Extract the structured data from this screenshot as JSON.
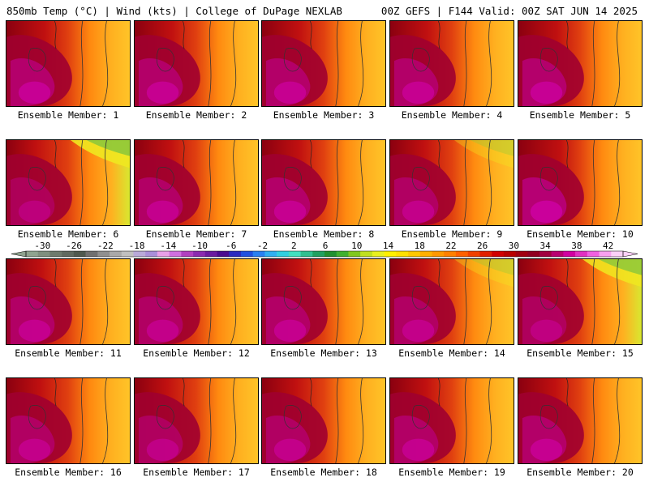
{
  "header": {
    "left": "850mb Temp (°C) | Wind (kts) | College of DuPage NEXLAB",
    "right": "00Z GEFS | F144 Valid: 00Z SAT JUN 14 2025"
  },
  "members": [
    {
      "label": "Ensemble Member: 1",
      "coolness": 0.05,
      "hotness": 0.85
    },
    {
      "label": "Ensemble Member: 2",
      "coolness": 0.15,
      "hotness": 0.8
    },
    {
      "label": "Ensemble Member: 3",
      "coolness": 0.1,
      "hotness": 0.8
    },
    {
      "label": "Ensemble Member: 4",
      "coolness": 0.2,
      "hotness": 0.8
    },
    {
      "label": "Ensemble Member: 5",
      "coolness": 0.1,
      "hotness": 0.85
    },
    {
      "label": "Ensemble Member: 6",
      "coolness": 0.9,
      "hotness": 0.55
    },
    {
      "label": "Ensemble Member: 7",
      "coolness": 0.1,
      "hotness": 0.75
    },
    {
      "label": "Ensemble Member: 8",
      "coolness": 0.1,
      "hotness": 0.8
    },
    {
      "label": "Ensemble Member: 9",
      "coolness": 0.35,
      "hotness": 0.7
    },
    {
      "label": "Ensemble Member: 10",
      "coolness": 0.05,
      "hotness": 0.95
    },
    {
      "label": "Ensemble Member: 11",
      "coolness": 0.15,
      "hotness": 0.75
    },
    {
      "label": "Ensemble Member: 12",
      "coolness": 0.1,
      "hotness": 0.7
    },
    {
      "label": "Ensemble Member: 13",
      "coolness": 0.15,
      "hotness": 0.75
    },
    {
      "label": "Ensemble Member: 14",
      "coolness": 0.35,
      "hotness": 0.7
    },
    {
      "label": "Ensemble Member: 15",
      "coolness": 0.85,
      "hotness": 0.6
    },
    {
      "label": "Ensemble Member: 16",
      "coolness": 0.1,
      "hotness": 0.7
    },
    {
      "label": "Ensemble Member: 17",
      "coolness": 0.2,
      "hotness": 0.65
    },
    {
      "label": "Ensemble Member: 18",
      "coolness": 0.15,
      "hotness": 0.7
    },
    {
      "label": "Ensemble Member: 19",
      "coolness": 0.15,
      "hotness": 0.75
    },
    {
      "label": "Ensemble Member: 20",
      "coolness": 0.15,
      "hotness": 0.8
    }
  ],
  "colorbar": {
    "ticks": [
      "-30",
      "-26",
      "-22",
      "-18",
      "-14",
      "-10",
      "-6",
      "-2",
      "2",
      "6",
      "10",
      "14",
      "18",
      "22",
      "26",
      "30",
      "34",
      "38",
      "42"
    ],
    "colors": [
      "#8fa38f",
      "#7f8f7f",
      "#6d7a6d",
      "#5f695f",
      "#4e584e",
      "#6f6f6f",
      "#8f8f8f",
      "#a9a9a9",
      "#c0c0c0",
      "#b9a9d9",
      "#a98fd9",
      "#e8a0e8",
      "#cf6fdf",
      "#b040c0",
      "#8a2aaf",
      "#6a1a9f",
      "#4a0a8f",
      "#2a2abf",
      "#2050e0",
      "#2a80f0",
      "#30b0f0",
      "#30d0e0",
      "#40e0c0",
      "#30c090",
      "#20a060",
      "#209030",
      "#40b030",
      "#80c820",
      "#c0e020",
      "#e8f020",
      "#fff000",
      "#ffe000",
      "#ffc800",
      "#ffb000",
      "#ff9800",
      "#ff8000",
      "#ff6000",
      "#f04000",
      "#e02000",
      "#d00000",
      "#b80000",
      "#a00010",
      "#900020",
      "#a00040",
      "#b80070",
      "#d000a0",
      "#e030c0",
      "#f060e0",
      "#f8a0f0",
      "#fcd0f8"
    ]
  }
}
